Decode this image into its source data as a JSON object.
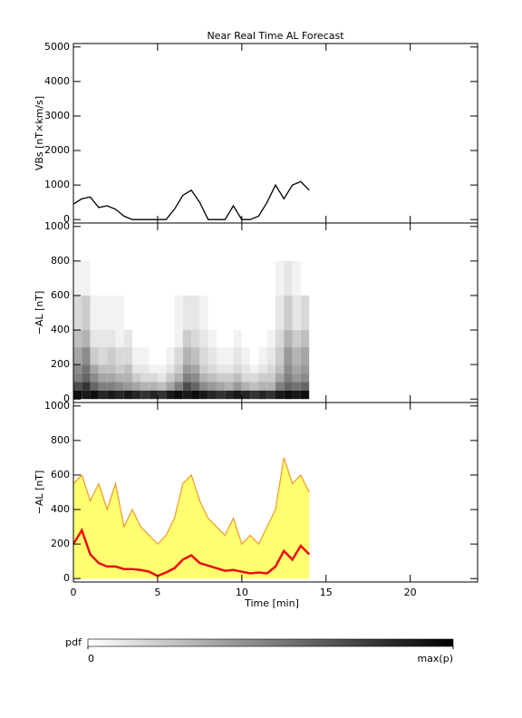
{
  "chart_data": [
    {
      "type": "line",
      "title": "Near Real Time AL Forecast",
      "ylabel": "VBs [nT×km/s]",
      "x": [
        0,
        0.5,
        1,
        1.5,
        2,
        2.5,
        3,
        3.5,
        4,
        4.5,
        5,
        5.5,
        6,
        6.5,
        7,
        7.5,
        8,
        8.5,
        9,
        9.5,
        10,
        10.5,
        11,
        11.5,
        12,
        12.5,
        13,
        13.5,
        14
      ],
      "series": [
        {
          "color": "#000000",
          "values": [
            450,
            600,
            650,
            350,
            400,
            300,
            100,
            0,
            0,
            0,
            0,
            0,
            300,
            700,
            850,
            500,
            0,
            0,
            0,
            400,
            0,
            0,
            100,
            500,
            1000,
            600,
            1000,
            1100,
            850
          ]
        }
      ],
      "xlim": [
        0,
        24
      ],
      "xticks": [
        0,
        5,
        10,
        15,
        20
      ],
      "ylim": [
        -100,
        5100
      ],
      "yticks": [
        0,
        1000,
        2000,
        3000,
        4000,
        5000
      ]
    },
    {
      "type": "heatmap",
      "ylabel": "−AL [nT]",
      "x_bins": [
        0,
        0.5,
        1,
        1.5,
        2,
        2.5,
        3,
        3.5,
        4,
        4.5,
        5,
        5.5,
        6,
        6.5,
        7,
        7.5,
        8,
        8.5,
        9,
        9.5,
        10,
        10.5,
        11,
        11.5,
        12,
        12.5,
        13,
        13.5,
        14
      ],
      "y_bins": [
        0,
        50,
        100,
        150,
        200,
        300,
        400,
        600,
        800
      ],
      "z": [
        [
          0.95,
          0.9,
          0.95,
          0.85,
          0.9,
          0.85,
          0.9,
          0.85,
          0.8,
          0.85,
          0.8,
          0.9,
          0.95,
          0.9,
          0.95,
          0.9,
          0.85,
          0.8,
          0.85,
          0.9,
          0.85,
          0.8,
          0.85,
          0.8,
          0.9,
          0.95,
          0.9,
          0.95
        ],
        [
          0.7,
          0.8,
          0.6,
          0.5,
          0.5,
          0.45,
          0.4,
          0.35,
          0.3,
          0.3,
          0.25,
          0.35,
          0.5,
          0.7,
          0.6,
          0.45,
          0.4,
          0.35,
          0.3,
          0.4,
          0.3,
          0.25,
          0.3,
          0.3,
          0.5,
          0.6,
          0.55,
          0.6
        ],
        [
          0.5,
          0.6,
          0.45,
          0.35,
          0.35,
          0.3,
          0.3,
          0.2,
          0.15,
          0.15,
          0.1,
          0.2,
          0.3,
          0.5,
          0.45,
          0.3,
          0.25,
          0.2,
          0.2,
          0.25,
          0.15,
          0.15,
          0.2,
          0.2,
          0.35,
          0.5,
          0.4,
          0.45
        ],
        [
          0.45,
          0.55,
          0.35,
          0.25,
          0.25,
          0.2,
          0.25,
          0.1,
          0.1,
          0.05,
          0.05,
          0.1,
          0.2,
          0.4,
          0.35,
          0.2,
          0.15,
          0.1,
          0.1,
          0.15,
          0.1,
          0.05,
          0.1,
          0.15,
          0.25,
          0.45,
          0.35,
          0.4
        ],
        [
          0.35,
          0.45,
          0.2,
          0.15,
          0.2,
          0.15,
          0.15,
          0.05,
          0.05,
          0,
          0,
          0.05,
          0.15,
          0.3,
          0.25,
          0.15,
          0.1,
          0.05,
          0.05,
          0.1,
          0.05,
          0,
          0.05,
          0.1,
          0.2,
          0.4,
          0.3,
          0.35
        ],
        [
          0.25,
          0.3,
          0.1,
          0.1,
          0.1,
          0.05,
          0.1,
          0,
          0,
          0,
          0,
          0,
          0.05,
          0.2,
          0.15,
          0.1,
          0.05,
          0,
          0,
          0.05,
          0,
          0,
          0,
          0.05,
          0.15,
          0.3,
          0.2,
          0.25
        ],
        [
          0.15,
          0.2,
          0.05,
          0.05,
          0.05,
          0.05,
          0,
          0,
          0,
          0,
          0,
          0,
          0.05,
          0.1,
          0.1,
          0.05,
          0,
          0,
          0,
          0,
          0,
          0,
          0,
          0,
          0.1,
          0.2,
          0.1,
          0.15
        ],
        [
          0.05,
          0.05,
          0,
          0,
          0,
          0,
          0,
          0,
          0,
          0,
          0,
          0,
          0,
          0,
          0,
          0,
          0,
          0,
          0,
          0,
          0,
          0,
          0,
          0,
          0.05,
          0.1,
          0.05,
          0
        ]
      ],
      "xlim": [
        0,
        24
      ],
      "xticks": [
        0,
        5,
        10,
        15,
        20
      ],
      "ylim": [
        -20,
        1020
      ],
      "yticks": [
        0,
        200,
        400,
        600,
        800,
        1000
      ]
    },
    {
      "type": "line",
      "ylabel": "−AL [nT]",
      "xlabel": "Time [min]",
      "x": [
        0,
        0.5,
        1,
        1.5,
        2,
        2.5,
        3,
        3.5,
        4,
        4.5,
        5,
        5.5,
        6,
        6.5,
        7,
        7.5,
        8,
        8.5,
        9,
        9.5,
        10,
        10.5,
        11,
        11.5,
        12,
        12.5,
        13,
        13.5,
        14
      ],
      "series": [
        {
          "color": "#f0a030",
          "area_color": "#ffff33",
          "values": [
            550,
            600,
            450,
            550,
            400,
            550,
            300,
            400,
            300,
            250,
            200,
            250,
            350,
            550,
            600,
            450,
            350,
            300,
            250,
            350,
            200,
            250,
            200,
            300,
            400,
            700,
            550,
            600,
            500
          ]
        },
        {
          "color": "#e81010",
          "values": [
            200,
            280,
            140,
            90,
            70,
            70,
            55,
            55,
            50,
            40,
            15,
            35,
            60,
            110,
            135,
            90,
            75,
            60,
            45,
            50,
            40,
            30,
            35,
            30,
            70,
            160,
            110,
            190,
            140
          ]
        }
      ],
      "xlim": [
        0,
        24
      ],
      "xticks": [
        0,
        5,
        10,
        15,
        20
      ],
      "ylim": [
        -20,
        1020
      ],
      "yticks": [
        0,
        200,
        400,
        600,
        800,
        1000
      ]
    }
  ],
  "colorbar": {
    "label": "pdf",
    "ticks": [
      0,
      {
        "value": 1,
        "label": "max(p)"
      }
    ]
  }
}
